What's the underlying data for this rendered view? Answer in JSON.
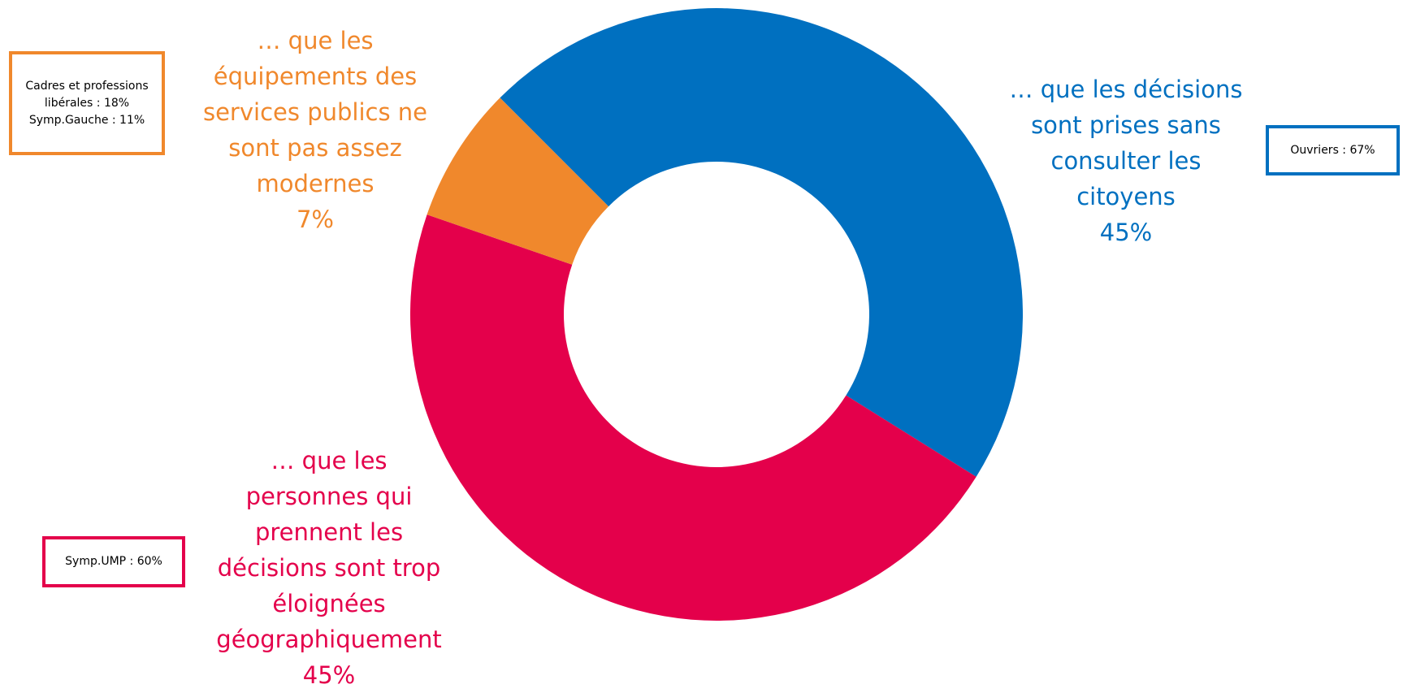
{
  "chart_data": {
    "type": "pie",
    "categories": [
      "… que les décisions sont prises sans consulter les citoyens",
      "… que les personnes qui prennent les décisions sont trop éloignées géographiquement",
      "… que les équipements des services publics ne sont pas assez modernes"
    ],
    "values": [
      45,
      45,
      7
    ],
    "value_labels": [
      "45%",
      "45%",
      "7%"
    ],
    "colors": [
      "#0070c0",
      "#e4004b",
      "#f0882c"
    ],
    "annotations": [
      {
        "text": "Ouvriers : 67%",
        "color": "#0070c0"
      },
      {
        "text": "Symp.UMP : 60%",
        "color": "#e4004b"
      },
      {
        "text": "Cadres et professions libérales : 18% Symp.Gauche : 11%",
        "color": "#f0882c"
      }
    ]
  }
}
